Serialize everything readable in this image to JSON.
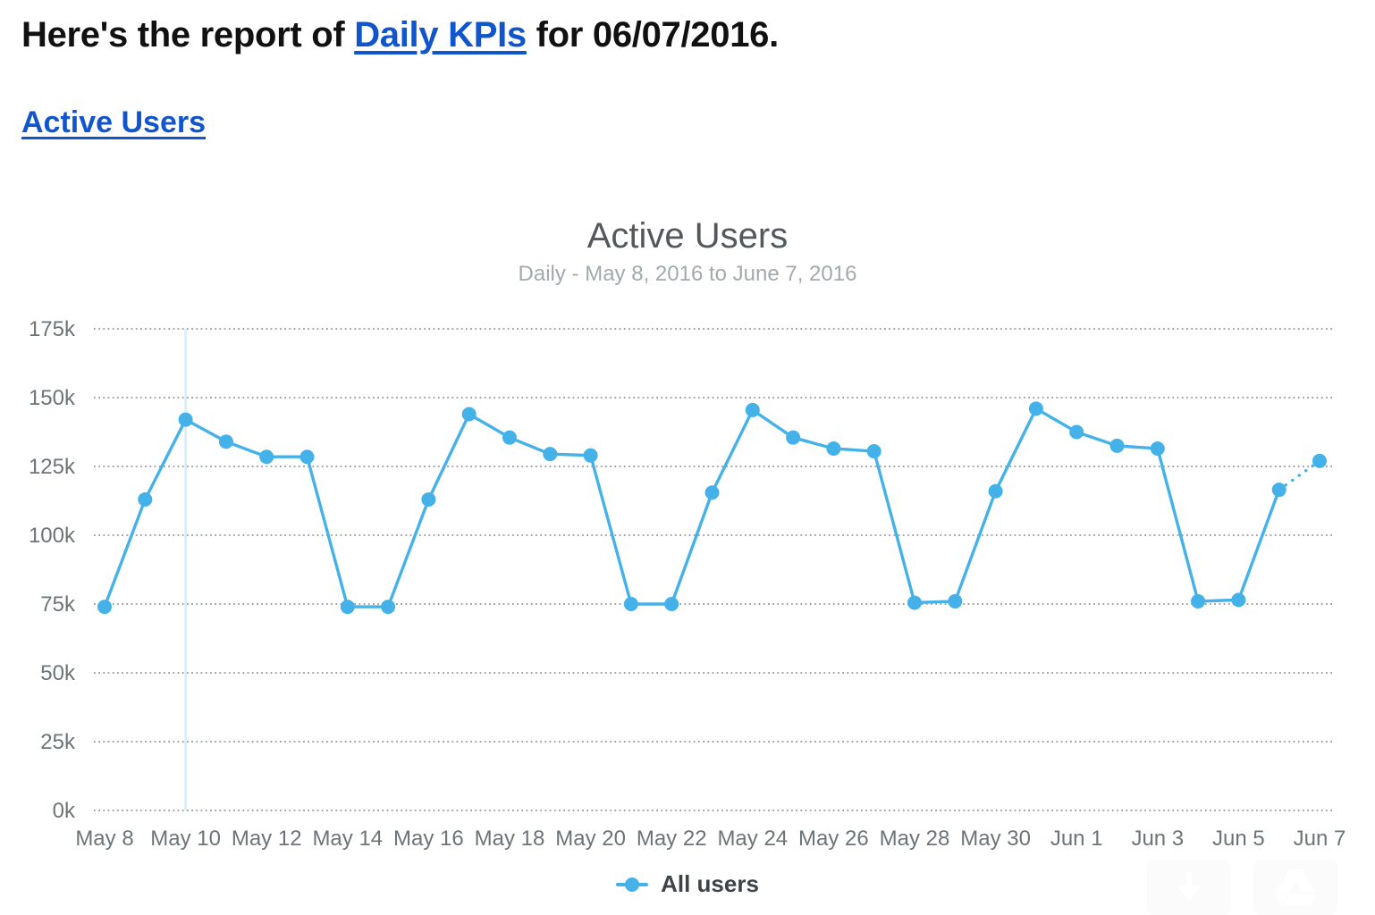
{
  "header": {
    "prefix": "Here's the report of ",
    "link_text": "Daily KPIs",
    "suffix": " for 06/07/2016."
  },
  "section": {
    "link_text": "Active Users"
  },
  "chart": {
    "title": "Active Users",
    "subtitle": "Daily - May 8, 2016 to June 7, 2016",
    "legend_label": "All users"
  },
  "chart_data": {
    "type": "line",
    "title": "Active Users",
    "subtitle": "Daily - May 8, 2016 to June 7, 2016",
    "x": [
      "May 8",
      "May 9",
      "May 10",
      "May 11",
      "May 12",
      "May 13",
      "May 14",
      "May 15",
      "May 16",
      "May 17",
      "May 18",
      "May 19",
      "May 20",
      "May 21",
      "May 22",
      "May 23",
      "May 24",
      "May 25",
      "May 26",
      "May 27",
      "May 28",
      "May 29",
      "May 30",
      "May 31",
      "Jun 1",
      "Jun 2",
      "Jun 3",
      "Jun 4",
      "Jun 5",
      "Jun 6",
      "Jun 7"
    ],
    "series": [
      {
        "name": "All users",
        "values": [
          74000,
          113000,
          142000,
          134000,
          128500,
          128500,
          74000,
          74000,
          113000,
          144000,
          135500,
          129500,
          129000,
          75000,
          75000,
          115500,
          145500,
          135500,
          131500,
          130500,
          75500,
          76000,
          116000,
          146000,
          137500,
          132500,
          131500,
          76000,
          76500,
          116500,
          127000
        ]
      }
    ],
    "ylim": [
      0,
      175000
    ],
    "ytick_labels": [
      "0k",
      "25k",
      "50k",
      "75k",
      "100k",
      "125k",
      "150k",
      "175k"
    ],
    "xtick_labels": [
      "May 8",
      "May 10",
      "May 12",
      "May 14",
      "May 16",
      "May 18",
      "May 20",
      "May 22",
      "May 24",
      "May 26",
      "May 28",
      "May 30",
      "Jun 1",
      "Jun 3",
      "Jun 5",
      "Jun 7"
    ],
    "grid": "horizontal-dotted",
    "legend_position": "bottom",
    "highlight_vline_x": "May 10",
    "last_segment_style": "dotted",
    "colors": {
      "line": "#44b1e8",
      "vline": "#d9ecf9",
      "grid": "#9fa4a8",
      "axis_text": "#6e7377",
      "title": "#54585c",
      "subtitle": "#a4a9ac",
      "link": "#1155cc",
      "legend_text": "#3f4347"
    }
  }
}
